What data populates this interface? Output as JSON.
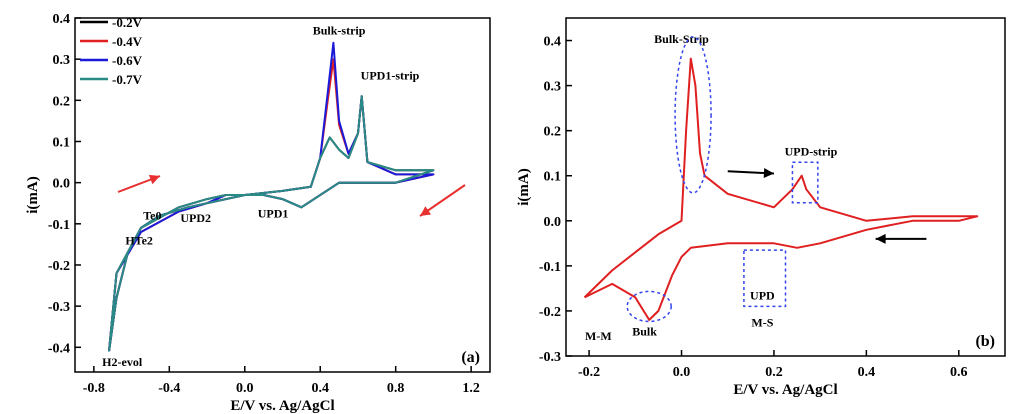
{
  "chart_data": [
    {
      "type": "line",
      "panel_label": "(a)",
      "xlabel": "E/V vs. Ag/AgCl",
      "ylabel": "i(mA)",
      "xlim": [
        -0.9,
        1.3
      ],
      "ylim": [
        -0.46,
        0.4
      ],
      "xticks": [
        -0.8,
        -0.4,
        0.0,
        0.4,
        0.8,
        1.2
      ],
      "xtick_labels": [
        "-0.8",
        "-0.4",
        "0.0",
        "0.4",
        "0.8",
        "1.2"
      ],
      "yticks": [
        -0.4,
        -0.3,
        -0.2,
        -0.1,
        0.0,
        0.1,
        0.2,
        0.3,
        0.4
      ],
      "ytick_labels": [
        "-0.4",
        "-0.3",
        "-0.2",
        "-0.1",
        "0.0",
        "0.1",
        "0.2",
        "0.3",
        "0.4"
      ],
      "legend_position": "top-left",
      "series": [
        {
          "name": "-0.2V",
          "color": "#000000",
          "x": [
            -0.72,
            -0.68,
            -0.62,
            -0.55,
            -0.45,
            -0.3,
            -0.2,
            0.0,
            0.2,
            0.35,
            0.4,
            0.45,
            0.5,
            0.55,
            0.6,
            0.62,
            0.65,
            0.8,
            1.0,
            0.8,
            0.5,
            0.3,
            0.2,
            0.1,
            -0.1,
            -0.2,
            -0.35,
            -0.55,
            -0.68,
            -0.72
          ],
          "y": [
            -0.41,
            -0.28,
            -0.17,
            -0.11,
            -0.08,
            -0.06,
            -0.05,
            -0.03,
            -0.02,
            -0.01,
            0.06,
            0.11,
            0.08,
            0.06,
            0.12,
            0.21,
            0.05,
            0.03,
            0.03,
            0.0,
            0.0,
            -0.06,
            -0.04,
            -0.03,
            -0.03,
            -0.04,
            -0.06,
            -0.11,
            -0.22,
            -0.41
          ]
        },
        {
          "name": "-0.4V",
          "color": "#e02020",
          "x": [
            -0.72,
            -0.68,
            -0.62,
            -0.55,
            -0.45,
            -0.3,
            -0.2,
            0.0,
            0.2,
            0.35,
            0.4,
            0.44,
            0.47,
            0.5,
            0.55,
            0.6,
            0.62,
            0.65,
            0.8,
            1.0,
            0.8,
            0.5,
            0.3,
            0.2,
            0.1,
            -0.1,
            -0.2,
            -0.35,
            -0.55,
            -0.68,
            -0.72
          ],
          "y": [
            -0.41,
            -0.28,
            -0.17,
            -0.11,
            -0.08,
            -0.06,
            -0.05,
            -0.03,
            -0.02,
            -0.01,
            0.06,
            0.2,
            0.3,
            0.14,
            0.07,
            0.12,
            0.21,
            0.05,
            0.02,
            0.02,
            0.0,
            0.0,
            -0.06,
            -0.04,
            -0.03,
            -0.03,
            -0.05,
            -0.07,
            -0.12,
            -0.22,
            -0.41
          ]
        },
        {
          "name": "-0.6V",
          "color": "#1a1ad8",
          "x": [
            -0.72,
            -0.68,
            -0.62,
            -0.55,
            -0.45,
            -0.3,
            -0.2,
            0.0,
            0.2,
            0.35,
            0.4,
            0.44,
            0.47,
            0.5,
            0.55,
            0.6,
            0.62,
            0.65,
            0.8,
            1.0,
            0.8,
            0.5,
            0.3,
            0.2,
            0.1,
            -0.1,
            -0.2,
            -0.35,
            -0.55,
            -0.68,
            -0.72
          ],
          "y": [
            -0.41,
            -0.28,
            -0.17,
            -0.11,
            -0.08,
            -0.06,
            -0.05,
            -0.03,
            -0.02,
            -0.01,
            0.06,
            0.22,
            0.34,
            0.15,
            0.07,
            0.12,
            0.21,
            0.05,
            0.02,
            0.02,
            0.0,
            0.0,
            -0.06,
            -0.04,
            -0.03,
            -0.03,
            -0.05,
            -0.07,
            -0.12,
            -0.22,
            -0.41
          ]
        },
        {
          "name": "-0.7V",
          "color": "#2a8a86",
          "x": [
            -0.72,
            -0.68,
            -0.62,
            -0.55,
            -0.45,
            -0.3,
            -0.2,
            0.0,
            0.2,
            0.35,
            0.4,
            0.45,
            0.5,
            0.55,
            0.6,
            0.62,
            0.65,
            0.8,
            1.0,
            0.8,
            0.5,
            0.3,
            0.2,
            0.1,
            -0.1,
            -0.2,
            -0.35,
            -0.55,
            -0.68,
            -0.72
          ],
          "y": [
            -0.41,
            -0.28,
            -0.17,
            -0.11,
            -0.08,
            -0.06,
            -0.05,
            -0.03,
            -0.02,
            -0.01,
            0.06,
            0.11,
            0.08,
            0.06,
            0.12,
            0.21,
            0.05,
            0.03,
            0.03,
            0.0,
            0.0,
            -0.06,
            -0.04,
            -0.03,
            -0.03,
            -0.04,
            -0.06,
            -0.11,
            -0.22,
            -0.41
          ]
        }
      ],
      "annotations": [
        {
          "text": "Bulk-strip",
          "x": 0.5,
          "y": 0.36
        },
        {
          "text": "UPD1-strip",
          "x": 0.77,
          "y": 0.25
        },
        {
          "text": "Te0",
          "x": -0.49,
          "y": -0.09
        },
        {
          "text": "HTe2",
          "x": -0.56,
          "y": -0.15
        },
        {
          "text": "UPD2",
          "x": -0.26,
          "y": -0.095
        },
        {
          "text": "UPD1",
          "x": 0.15,
          "y": -0.085
        },
        {
          "text": "H2-evol",
          "x": -0.65,
          "y": -0.445
        }
      ]
    },
    {
      "type": "line",
      "panel_label": "(b)",
      "xlabel": "E/V vs. Ag/AgCl",
      "ylabel": "i(mA)",
      "xlim": [
        -0.25,
        0.7
      ],
      "ylim": [
        -0.3,
        0.45
      ],
      "xticks": [
        -0.2,
        0.0,
        0.2,
        0.4,
        0.6
      ],
      "xtick_labels": [
        "-0.2",
        "0.0",
        "0.2",
        "0.4",
        "0.6"
      ],
      "yticks": [
        -0.3,
        -0.2,
        -0.1,
        0.0,
        0.1,
        0.2,
        0.3,
        0.4
      ],
      "ytick_labels": [
        "-0.3",
        "-0.2",
        "-0.1",
        "0.0",
        "0.1",
        "0.2",
        "0.3",
        "0.4"
      ],
      "series": [
        {
          "color": "#e02020",
          "x": [
            -0.21,
            -0.15,
            -0.1,
            -0.07,
            -0.05,
            -0.02,
            0.0,
            0.02,
            0.1,
            0.2,
            0.25,
            0.3,
            0.4,
            0.5,
            0.6,
            0.64,
            0.6,
            0.5,
            0.4,
            0.3,
            0.27,
            0.26,
            0.24,
            0.2,
            0.1,
            0.05,
            0.04,
            0.03,
            0.02,
            0.01,
            0.0,
            -0.05,
            -0.1,
            -0.15,
            -0.21
          ],
          "y": [
            -0.17,
            -0.14,
            -0.17,
            -0.22,
            -0.2,
            -0.12,
            -0.08,
            -0.06,
            -0.05,
            -0.05,
            -0.06,
            -0.05,
            -0.02,
            0.0,
            0.0,
            0.01,
            0.01,
            0.01,
            0.0,
            0.03,
            0.07,
            0.1,
            0.07,
            0.03,
            0.06,
            0.1,
            0.15,
            0.3,
            0.36,
            0.2,
            0.0,
            -0.03,
            -0.07,
            -0.11,
            -0.17
          ]
        }
      ],
      "annotations": [
        {
          "text": "Bulk-Strip",
          "x": 0.0,
          "y": 0.395
        },
        {
          "text": "UPD-strip",
          "x": 0.28,
          "y": 0.145
        },
        {
          "text": "UPD",
          "x": 0.175,
          "y": -0.175
        },
        {
          "text": "M-S",
          "x": 0.175,
          "y": -0.235
        },
        {
          "text": "M-M",
          "x": -0.18,
          "y": -0.265
        },
        {
          "text": "Bulk",
          "x": -0.08,
          "y": -0.255
        }
      ]
    }
  ]
}
